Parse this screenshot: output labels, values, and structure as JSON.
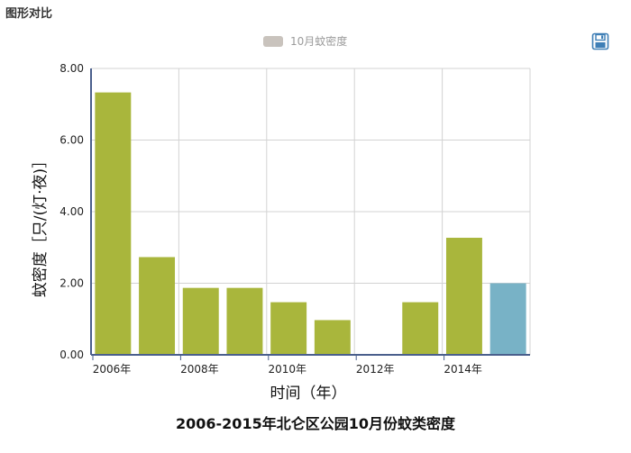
{
  "panel": {
    "title": "图形对比"
  },
  "legend": {
    "label": "10月蚊密度",
    "swatch_color": "#c9c3bd"
  },
  "toolbar": {
    "save_icon": "save-icon"
  },
  "colors": {
    "bar": "#a9b63c",
    "highlight": "#78b2c6"
  },
  "chart_data": {
    "type": "bar",
    "title": "2006-2015年北仑区公园10月份蚊类密度",
    "xlabel": "时间（年）",
    "ylabel": "蚊密度［只/(灯·夜)］",
    "categories": [
      "2006",
      "2007",
      "2008",
      "2009",
      "2010",
      "2011",
      "2012",
      "2013",
      "2014",
      "2015"
    ],
    "x_tick_labels": [
      "2006年",
      "2008年",
      "2010年",
      "2012年",
      "2014年"
    ],
    "y_tick_labels": [
      "0.00",
      "2.00",
      "4.00",
      "6.00",
      "8.00"
    ],
    "ylim": [
      0,
      8
    ],
    "grid": true,
    "legend_position": "top-center",
    "series": [
      {
        "name": "10月蚊密度",
        "values": [
          7.33,
          2.73,
          1.87,
          1.87,
          1.47,
          0.97,
          0,
          1.47,
          3.27,
          2.0
        ]
      }
    ],
    "highlight_index": 9
  }
}
